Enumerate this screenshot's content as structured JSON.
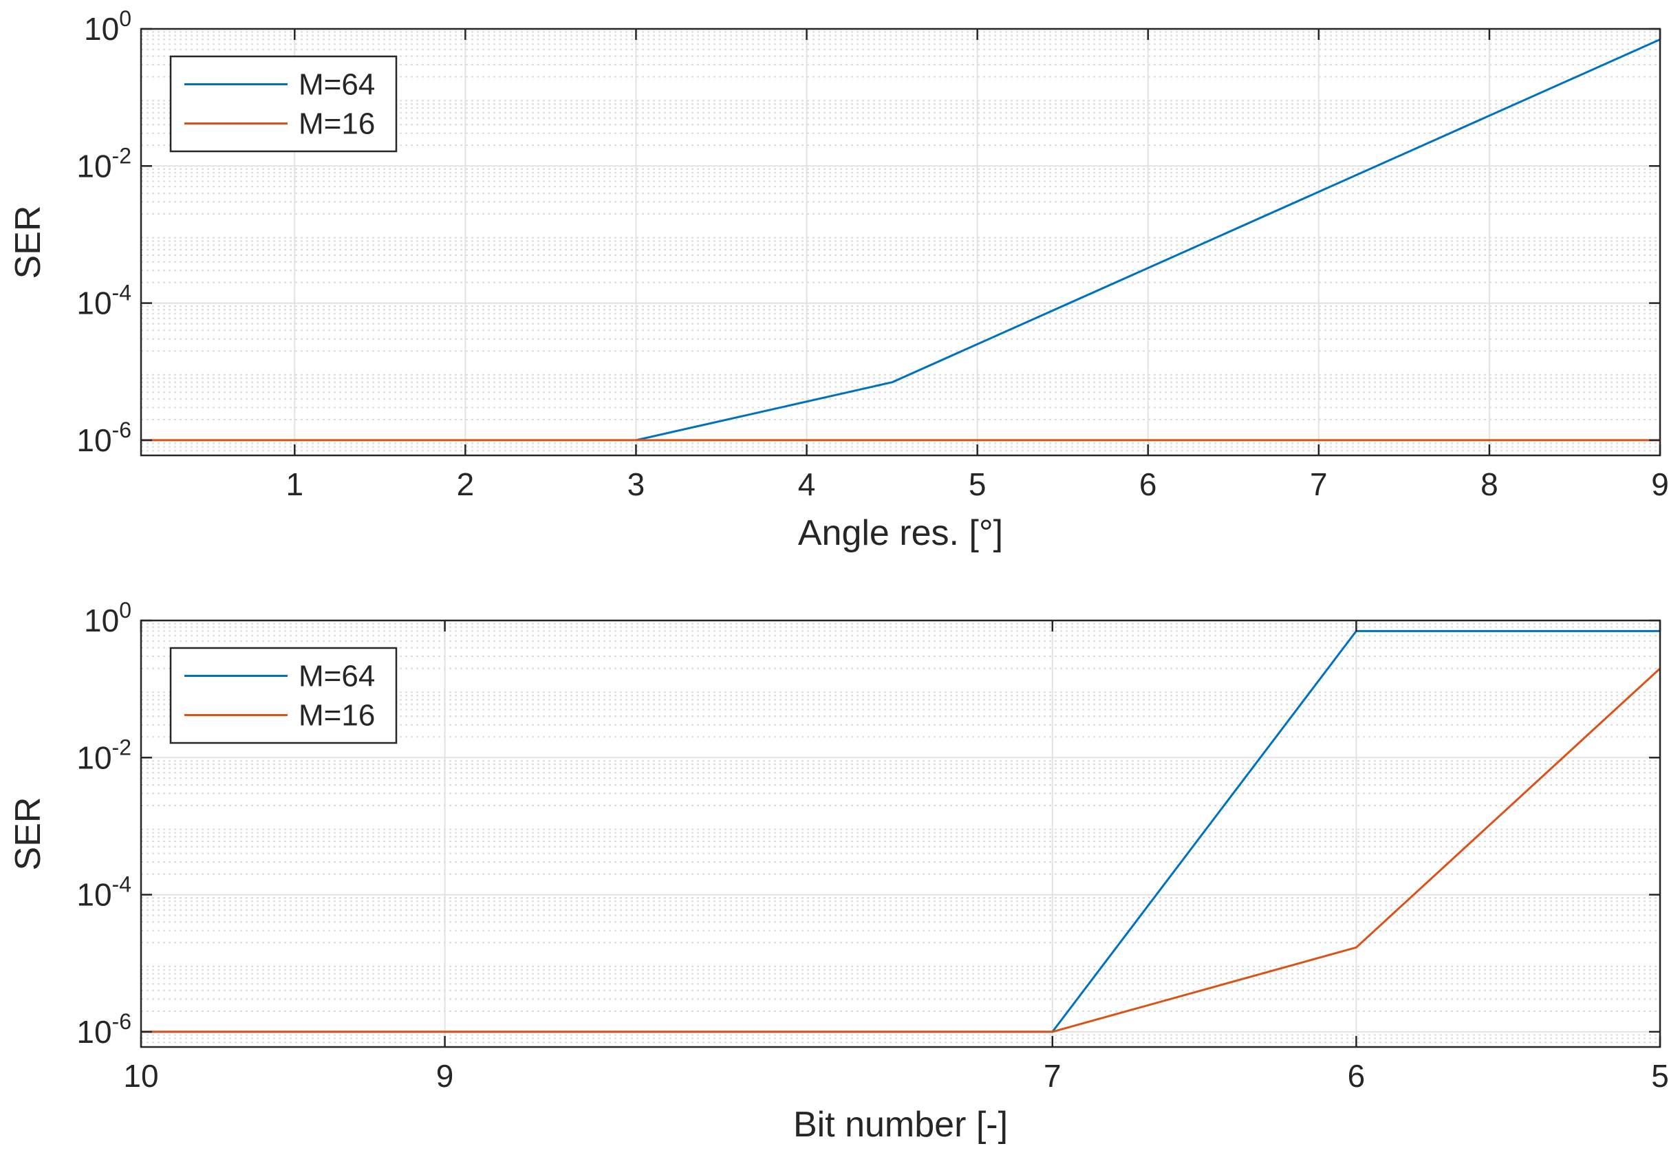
{
  "chart_data": [
    {
      "type": "line",
      "xlabel": "Angle res. [°]",
      "ylabel": "SER",
      "xlim": [
        0.1,
        9
      ],
      "ylim": [
        6e-07,
        1
      ],
      "yscale": "log",
      "x_reversed": false,
      "grid": true,
      "minor_grid": true,
      "xticks": [
        1,
        2,
        3,
        4,
        5,
        6,
        7,
        8,
        9
      ],
      "xtick_labels": [
        "1",
        "2",
        "3",
        "4",
        "5",
        "6",
        "7",
        "8",
        "9"
      ],
      "yticks": [
        1e-06,
        0.0001,
        0.01,
        1
      ],
      "ytick_labels": [
        [
          "10",
          "-6"
        ],
        [
          "10",
          "-4"
        ],
        [
          "10",
          "-2"
        ],
        [
          "10",
          "0"
        ]
      ],
      "legend_position": "top-left",
      "series": [
        {
          "name": "M=64",
          "color": "#0072BD",
          "x": [
            3,
            4.5,
            9
          ],
          "y": [
            1e-06,
            7e-06,
            0.7
          ]
        },
        {
          "name": "M=16",
          "color": "#D95319",
          "x": [
            0.1,
            9
          ],
          "y": [
            1e-06,
            1e-06
          ]
        }
      ]
    },
    {
      "type": "line",
      "xlabel": "Bit number [-]",
      "ylabel": "SER",
      "xlim": [
        10,
        5
      ],
      "ylim": [
        6e-07,
        1
      ],
      "yscale": "log",
      "x_reversed": true,
      "grid": true,
      "minor_grid": true,
      "xticks": [
        10,
        9,
        7,
        6,
        5
      ],
      "xtick_labels": [
        "10",
        "9",
        "7",
        "6",
        "5"
      ],
      "yticks": [
        1e-06,
        0.0001,
        0.01,
        1
      ],
      "ytick_labels": [
        [
          "10",
          "-6"
        ],
        [
          "10",
          "-4"
        ],
        [
          "10",
          "-2"
        ],
        [
          "10",
          "0"
        ]
      ],
      "legend_position": "top-left",
      "series": [
        {
          "name": "M=64",
          "color": "#0072BD",
          "x": [
            10,
            7,
            6,
            5
          ],
          "y": [
            1e-06,
            1e-06,
            0.7,
            0.7
          ]
        },
        {
          "name": "M=16",
          "color": "#D95319",
          "x": [
            10,
            7,
            6,
            5
          ],
          "y": [
            1e-06,
            1e-06,
            1.7e-05,
            0.2
          ]
        }
      ]
    }
  ]
}
